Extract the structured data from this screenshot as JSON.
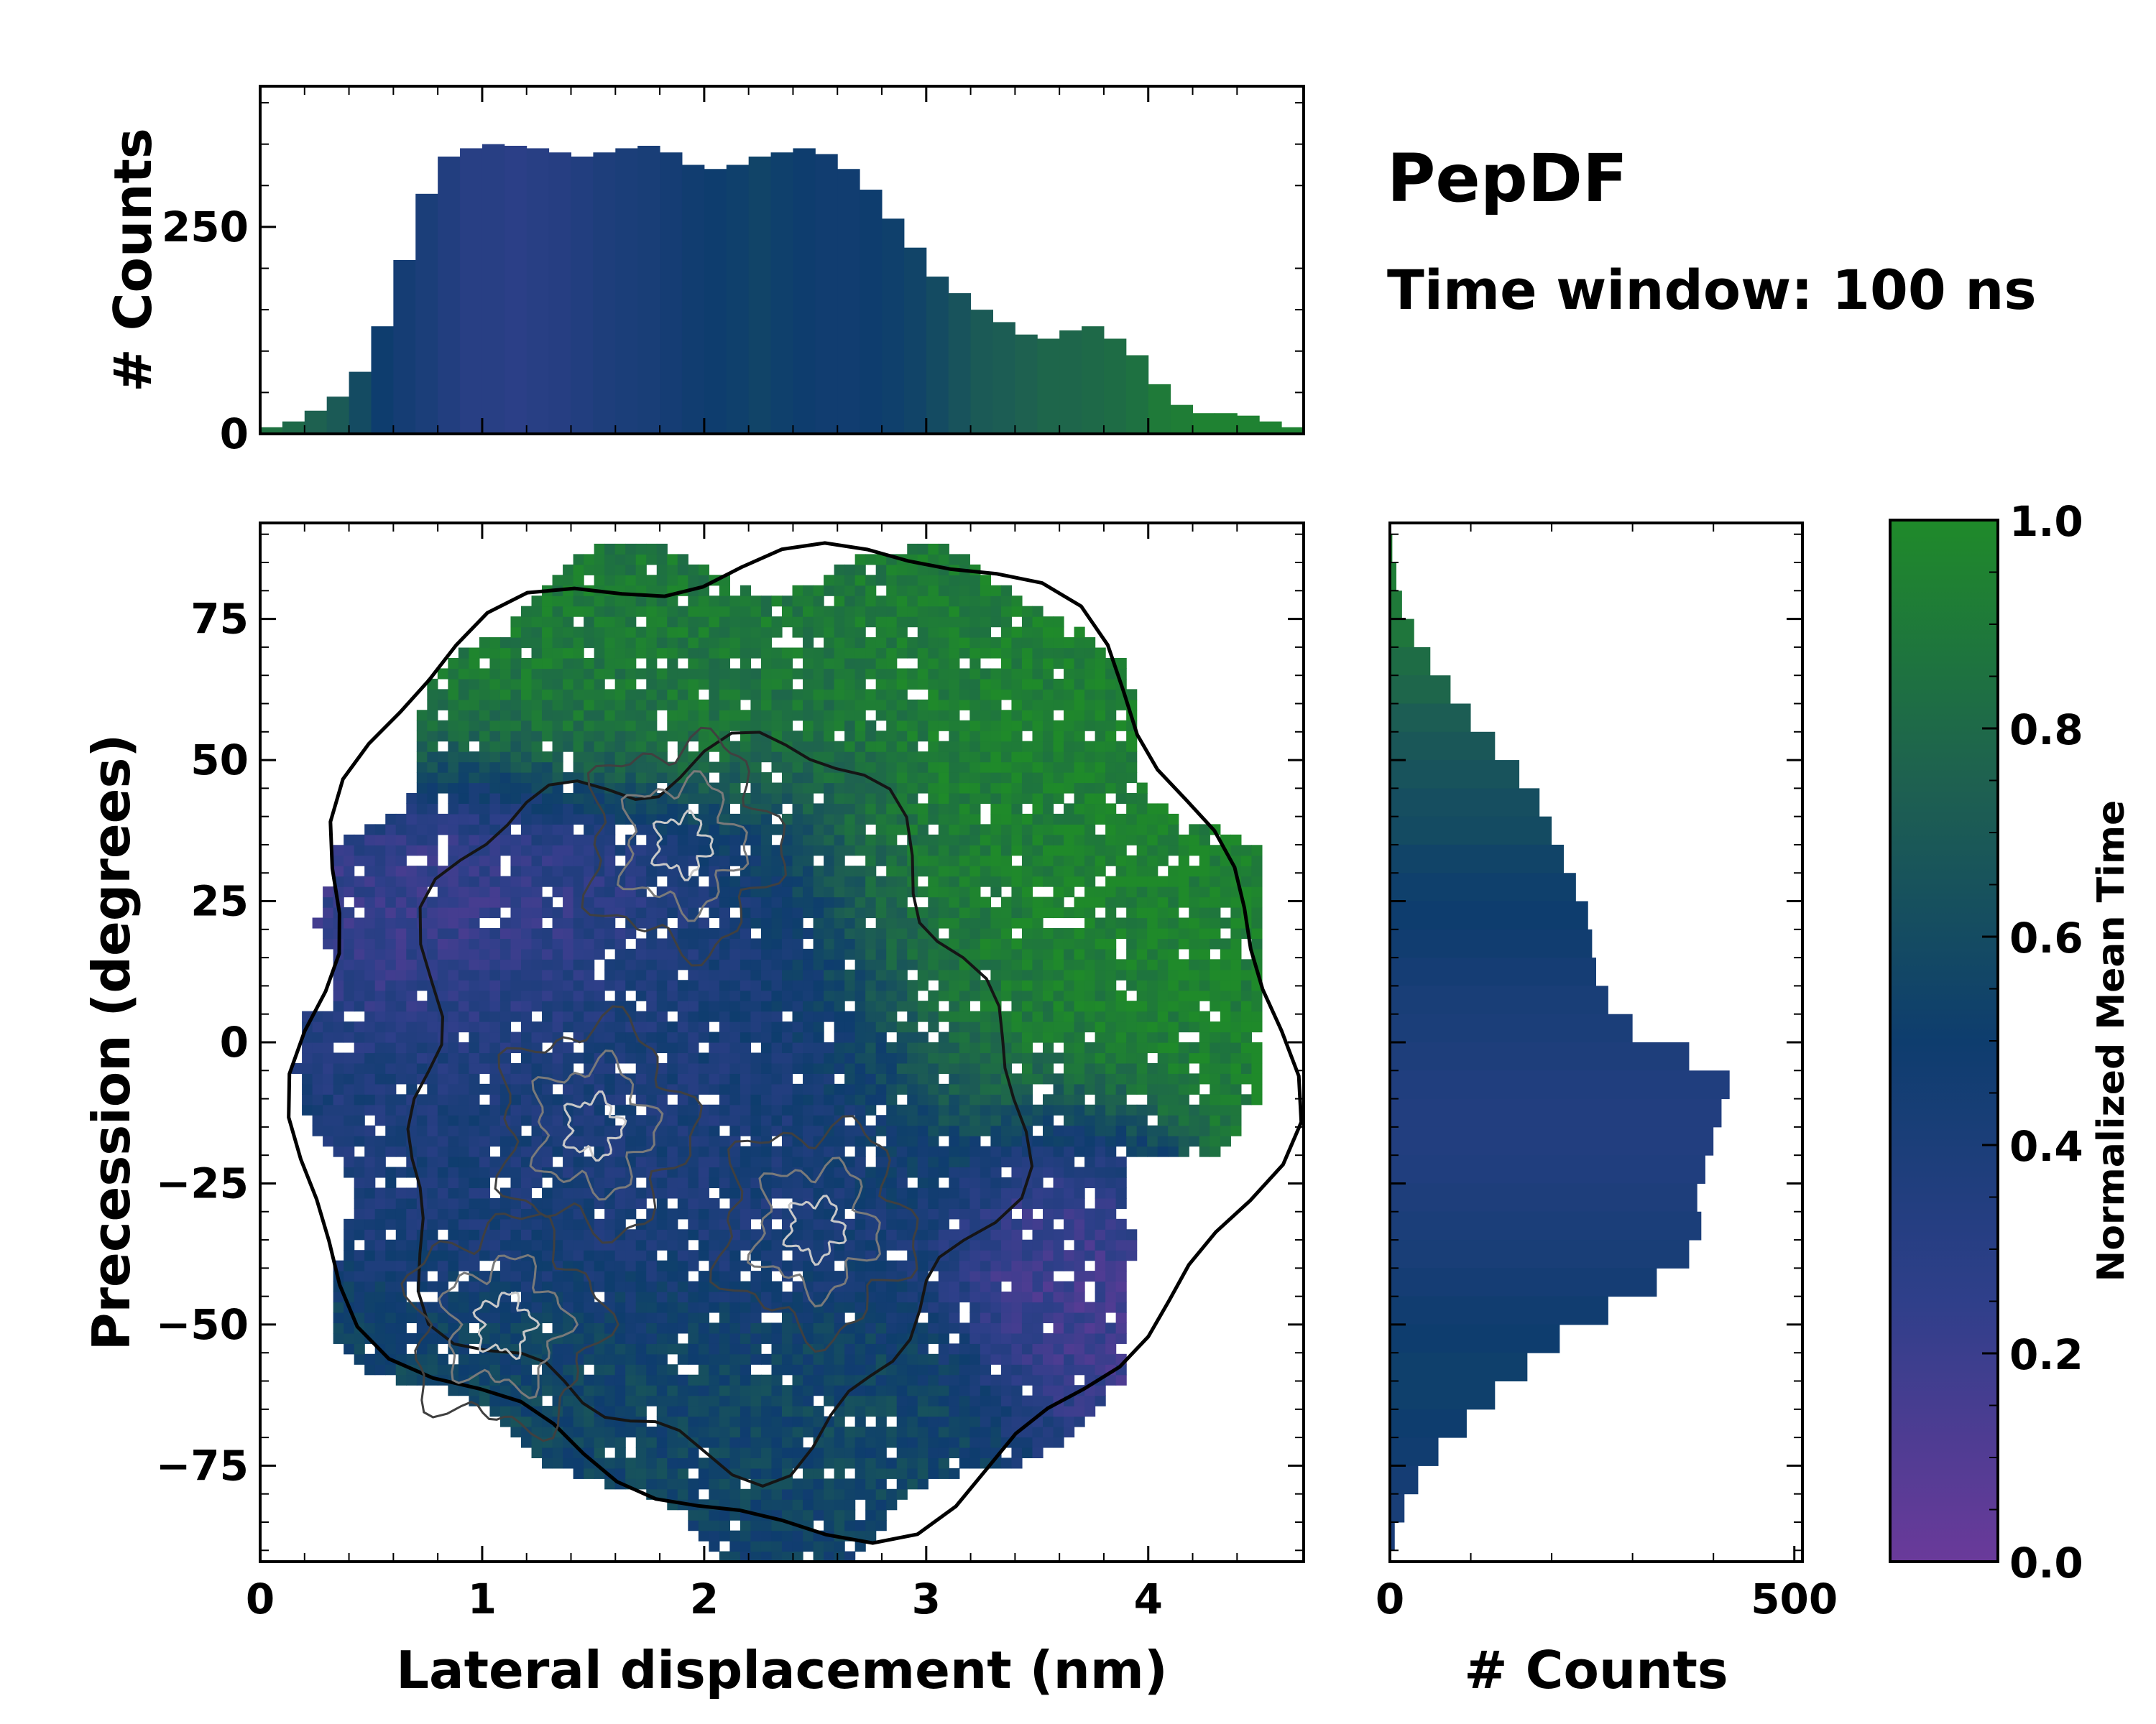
{
  "title": "PepDF",
  "subtitle": "Time window: 100 ns",
  "chart_data": [
    {
      "id": "top-histogram",
      "type": "bar",
      "xlabel": "",
      "ylabel": "# Counts",
      "xlim": [
        0,
        4.7
      ],
      "ylim": [
        0,
        420
      ],
      "yticks": [
        0,
        250
      ],
      "ytick_labels": [
        "0",
        "250"
      ],
      "x": [
        0.05,
        0.15,
        0.25,
        0.35,
        0.45,
        0.55,
        0.65,
        0.75,
        0.85,
        0.95,
        1.05,
        1.15,
        1.25,
        1.35,
        1.45,
        1.55,
        1.65,
        1.75,
        1.85,
        1.95,
        2.05,
        2.15,
        2.25,
        2.35,
        2.45,
        2.55,
        2.65,
        2.75,
        2.85,
        2.95,
        3.05,
        3.15,
        3.25,
        3.35,
        3.45,
        3.55,
        3.65,
        3.75,
        3.85,
        3.95,
        4.05,
        4.15,
        4.25,
        4.35,
        4.45,
        4.55,
        4.65
      ],
      "values": [
        8,
        15,
        28,
        45,
        75,
        130,
        210,
        290,
        335,
        345,
        350,
        348,
        345,
        340,
        335,
        340,
        345,
        348,
        340,
        325,
        320,
        325,
        335,
        340,
        345,
        338,
        320,
        295,
        260,
        225,
        190,
        170,
        150,
        135,
        120,
        115,
        125,
        130,
        115,
        95,
        60,
        35,
        25,
        25,
        22,
        15,
        8
      ],
      "mean_time": [
        0.85,
        0.8,
        0.75,
        0.7,
        0.6,
        0.5,
        0.45,
        0.4,
        0.35,
        0.3,
        0.3,
        0.28,
        0.3,
        0.32,
        0.35,
        0.38,
        0.4,
        0.42,
        0.45,
        0.48,
        0.5,
        0.52,
        0.55,
        0.52,
        0.5,
        0.48,
        0.48,
        0.5,
        0.52,
        0.55,
        0.6,
        0.65,
        0.7,
        0.72,
        0.75,
        0.78,
        0.78,
        0.8,
        0.82,
        0.85,
        0.9,
        0.92,
        0.95,
        0.95,
        0.95,
        0.95,
        0.95
      ]
    },
    {
      "id": "main-2d-histogram",
      "type": "heatmap",
      "xlabel": "Lateral displacement (nm)",
      "ylabel": "Precession (degrees)",
      "xlim": [
        0,
        4.7
      ],
      "ylim": [
        -92,
        92
      ],
      "xticks": [
        0,
        1,
        2,
        3,
        4
      ],
      "xtick_labels": [
        "0",
        "1",
        "2",
        "3",
        "4"
      ],
      "yticks": [
        75,
        50,
        25,
        0,
        -25,
        -50,
        -75
      ],
      "ytick_labels": [
        "75",
        "50",
        "25",
        "0",
        "−25",
        "−50",
        "−75"
      ],
      "regions": [
        {
          "name": "purple-upper-left",
          "x": [
            0.4,
            1.7
          ],
          "y": [
            5,
            45
          ],
          "mean_time": 0.2
        },
        {
          "name": "blue-center",
          "x": [
            0.8,
            2.9
          ],
          "y": [
            -60,
            30
          ],
          "mean_time": 0.4
        },
        {
          "name": "green-top",
          "x": [
            0.4,
            2.5
          ],
          "y": [
            45,
            90
          ],
          "mean_time": 0.9
        },
        {
          "name": "green-right",
          "x": [
            2.8,
            4.7
          ],
          "y": [
            -15,
            60
          ],
          "mean_time": 0.95
        },
        {
          "name": "purple-lower-right",
          "x": [
            3.2,
            4.1
          ],
          "y": [
            -60,
            -15
          ],
          "mean_time": 0.15
        },
        {
          "name": "teal-lower",
          "x": [
            0.6,
            3.0
          ],
          "y": [
            -80,
            -45
          ],
          "mean_time": 0.6
        }
      ],
      "density_peaks": [
        {
          "x": 1.5,
          "y": -15
        },
        {
          "x": 2.5,
          "y": -33
        },
        {
          "x": 1.1,
          "y": -50
        },
        {
          "x": 1.9,
          "y": 35
        }
      ]
    },
    {
      "id": "right-histogram",
      "type": "bar",
      "orientation": "horizontal",
      "xlabel": "# Counts",
      "ylabel": "",
      "xlim": [
        0,
        510
      ],
      "ylim": [
        -92,
        92
      ],
      "xticks": [
        0,
        500
      ],
      "xtick_labels": [
        "0",
        "500"
      ],
      "y": [
        87.5,
        82.5,
        77.5,
        72.5,
        67.5,
        62.5,
        57.5,
        52.5,
        47.5,
        42.5,
        37.5,
        32.5,
        27.5,
        22.5,
        17.5,
        12.5,
        7.5,
        2.5,
        -2.5,
        -7.5,
        -12.5,
        -17.5,
        -22.5,
        -27.5,
        -32.5,
        -37.5,
        -42.5,
        -47.5,
        -52.5,
        -57.5,
        -62.5,
        -67.5,
        -72.5,
        -77.5,
        -82.5,
        -87.5
      ],
      "values": [
        3,
        8,
        15,
        30,
        50,
        75,
        100,
        130,
        160,
        185,
        200,
        215,
        230,
        245,
        250,
        255,
        270,
        300,
        370,
        420,
        410,
        400,
        390,
        380,
        385,
        370,
        330,
        270,
        210,
        170,
        130,
        95,
        60,
        35,
        18,
        6
      ],
      "mean_time": [
        0.95,
        0.92,
        0.9,
        0.88,
        0.82,
        0.78,
        0.72,
        0.68,
        0.65,
        0.62,
        0.6,
        0.55,
        0.52,
        0.5,
        0.48,
        0.45,
        0.42,
        0.4,
        0.38,
        0.36,
        0.35,
        0.35,
        0.36,
        0.38,
        0.4,
        0.42,
        0.45,
        0.48,
        0.5,
        0.52,
        0.52,
        0.5,
        0.48,
        0.45,
        0.42,
        0.4
      ]
    },
    {
      "id": "colorbar",
      "type": "colorbar",
      "label": "Normalized Mean Time",
      "ylim": [
        0.0,
        1.0
      ],
      "ticks": [
        0.0,
        0.2,
        0.4,
        0.6,
        0.8,
        1.0
      ],
      "tick_labels": [
        "0.0",
        "0.2",
        "0.4",
        "0.6",
        "0.8",
        "1.0"
      ],
      "colors": [
        "#6a3a9a",
        "#2f3f8a",
        "#0e3d6e",
        "#1e6150",
        "#1f8a2a"
      ]
    }
  ]
}
